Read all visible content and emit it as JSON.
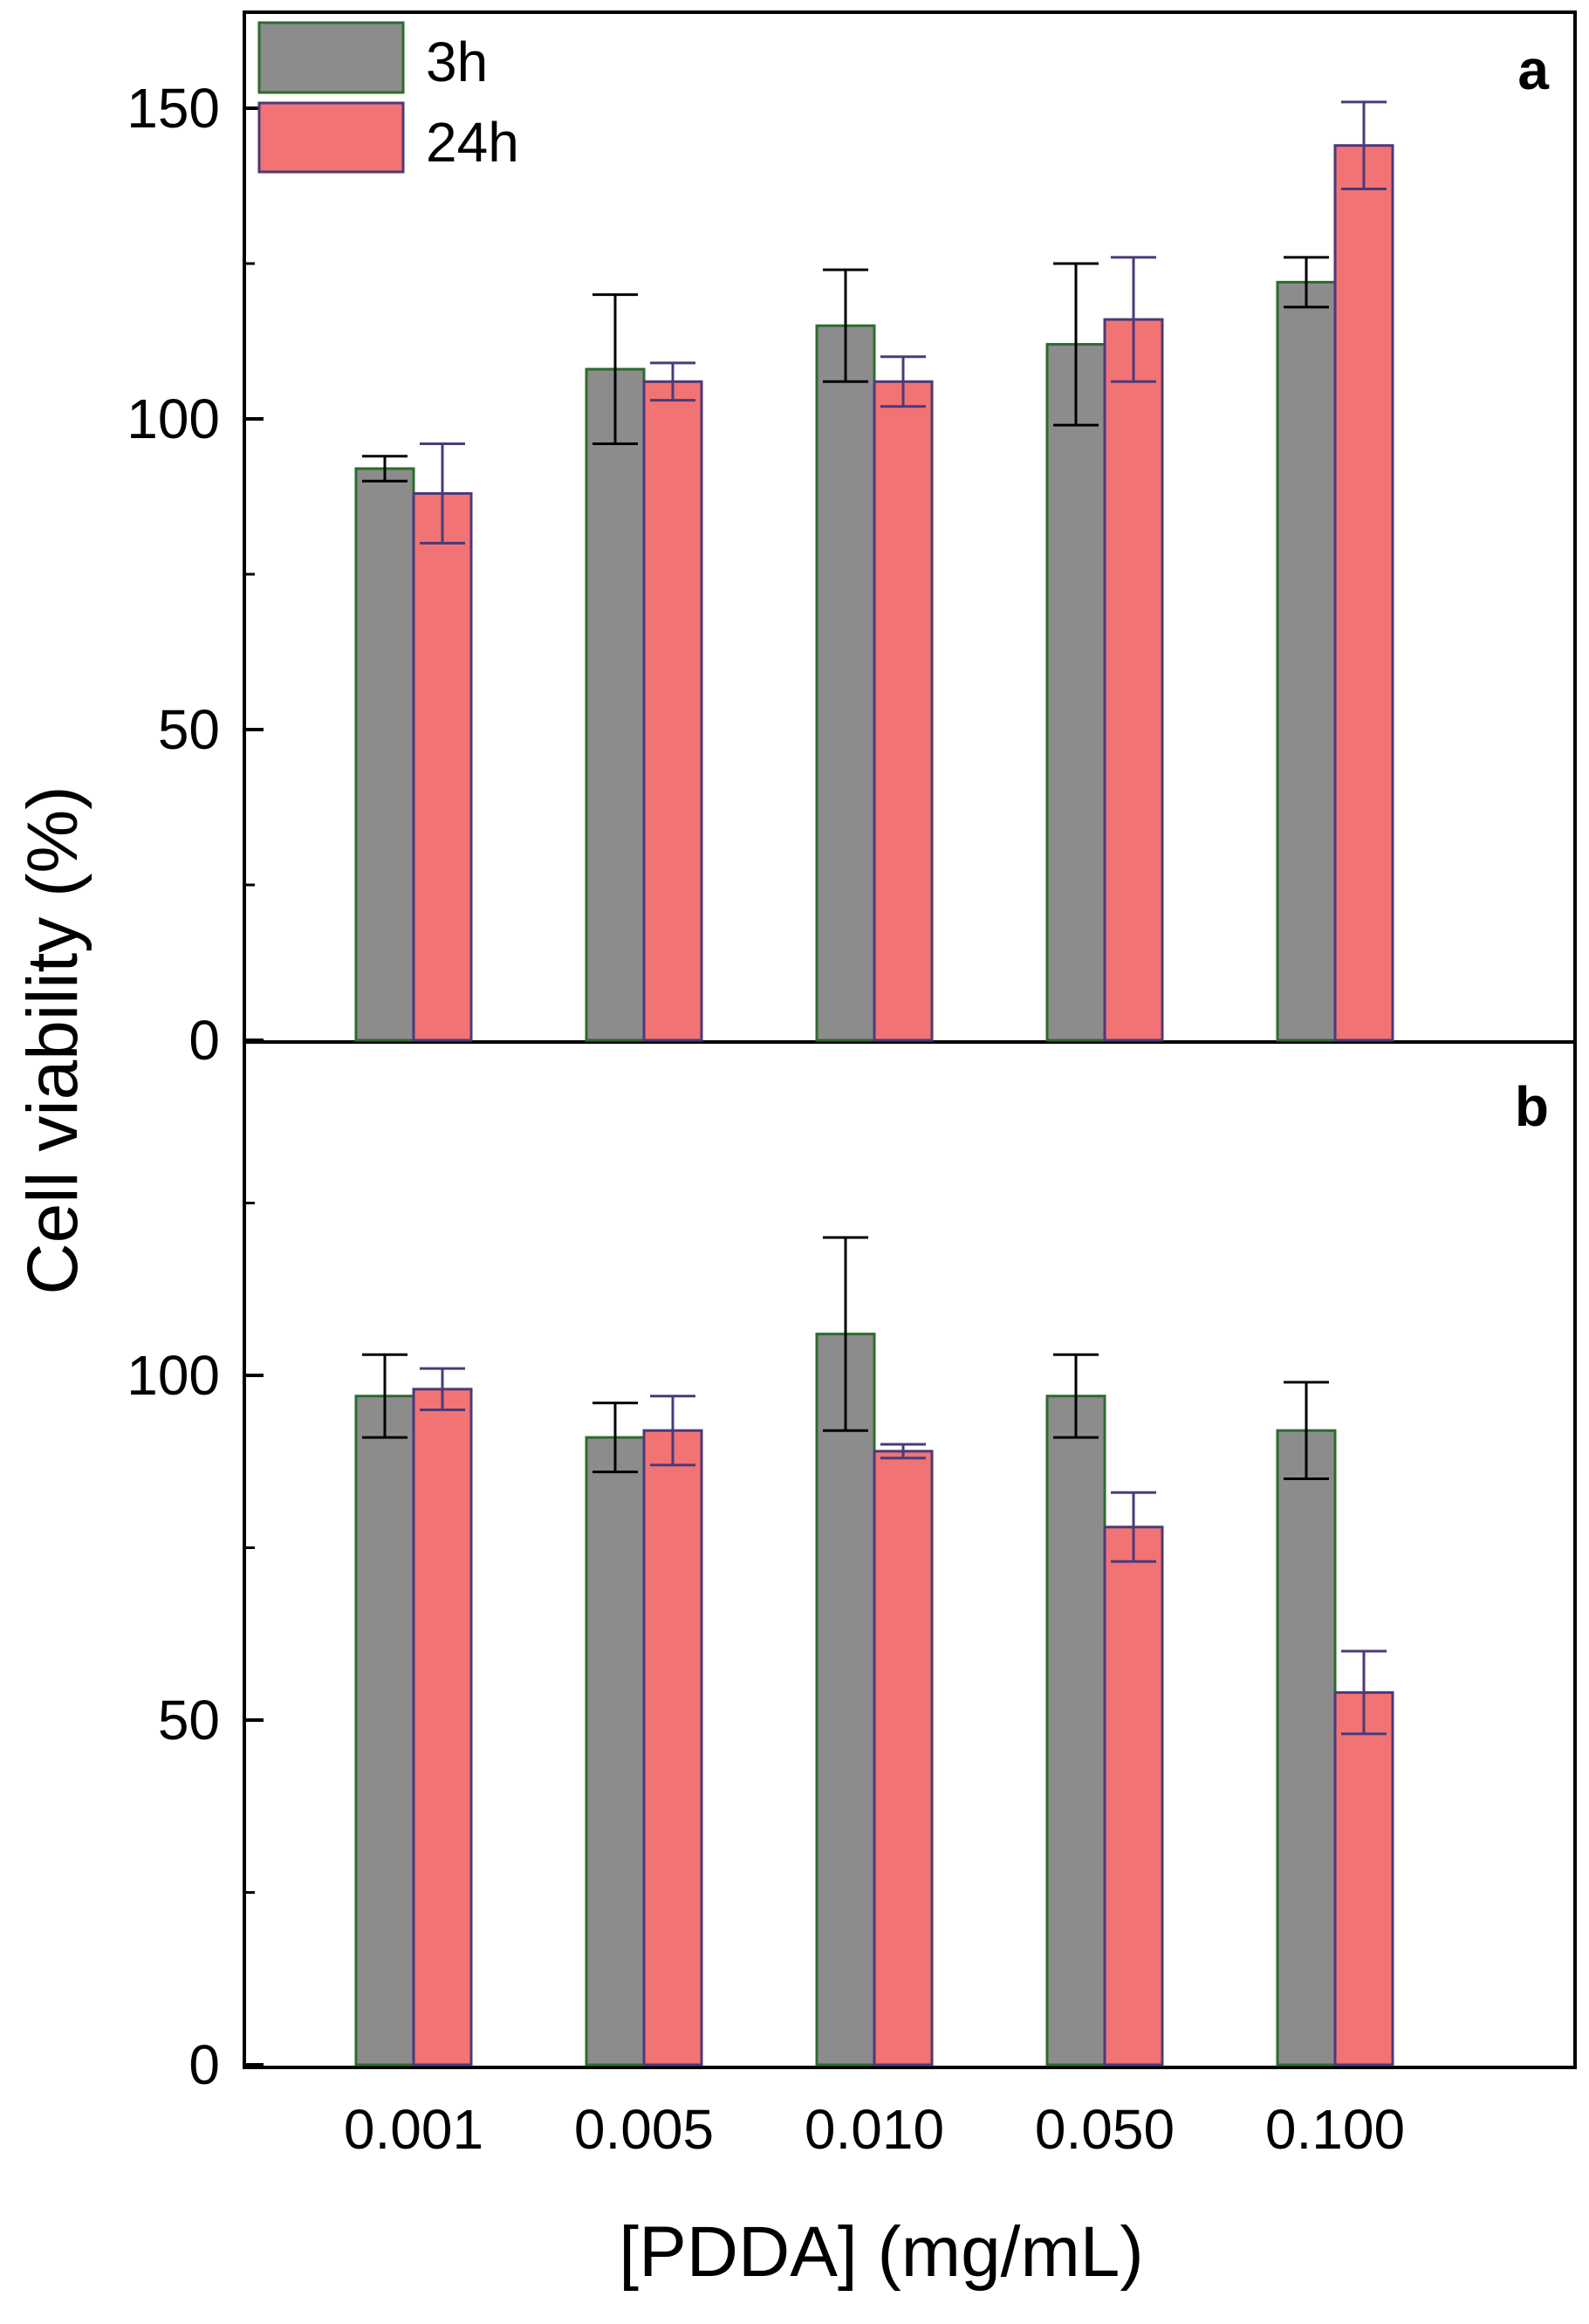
{
  "chart_data": [
    {
      "panel": "a",
      "type": "bar",
      "categories": [
        "0.001",
        "0.005",
        "0.010",
        "0.050",
        "0.100"
      ],
      "series": [
        {
          "name": "3h",
          "values": [
            92,
            108,
            115,
            112,
            122
          ],
          "errors": [
            2,
            12,
            9,
            13,
            4
          ]
        },
        {
          "name": "24h",
          "values": [
            88,
            106,
            106,
            116,
            144
          ],
          "errors": [
            8,
            3,
            4,
            10,
            7
          ]
        }
      ],
      "ylim": [
        0,
        165
      ],
      "yticks": [
        0,
        50,
        100,
        150
      ],
      "yminor": [
        25,
        75,
        125
      ]
    },
    {
      "panel": "b",
      "type": "bar",
      "categories": [
        "0.001",
        "0.005",
        "0.010",
        "0.050",
        "0.100"
      ],
      "series": [
        {
          "name": "3h",
          "values": [
            97,
            91,
            106,
            97,
            92
          ],
          "errors": [
            6,
            5,
            14,
            6,
            7
          ]
        },
        {
          "name": "24h",
          "values": [
            98,
            92,
            89,
            78,
            54
          ],
          "errors": [
            3,
            5,
            1,
            5,
            6
          ]
        }
      ],
      "ylim": [
        0,
        150
      ],
      "yticks": [
        0,
        50,
        100
      ],
      "yminor": [
        25,
        75,
        125
      ]
    }
  ],
  "labels": {
    "ylabel": "Cell viability (%)",
    "xlabel": "[PDDA] (mg/mL)",
    "panel_a": "a",
    "panel_b": "b"
  },
  "legend": [
    {
      "name": "3h",
      "fill": "#8c8c8c",
      "stroke": "#2e6b2e"
    },
    {
      "name": "24h",
      "fill": "#f27373",
      "stroke": "#4b3a7a"
    }
  ],
  "colors": {
    "bar_3h": "#8c8c8c",
    "bar_3h_edge": "#2e6b2e",
    "bar_24h": "#f27373",
    "bar_24h_edge": "#4b3a7a",
    "err_3h": "#000000",
    "err_24h": "#4b3a7a"
  }
}
